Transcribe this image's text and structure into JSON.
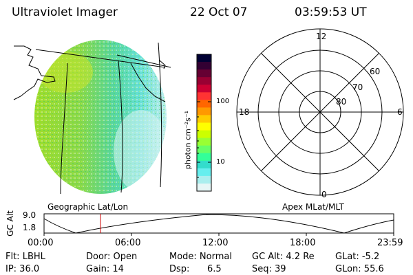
{
  "header": {
    "instrument": "Ultraviolet Imager",
    "date": "22 Oct 07",
    "time": "03:59:53 UT"
  },
  "colorbar": {
    "unit_label": "photon cm⁻²s⁻¹",
    "ticks": [
      "100",
      "10"
    ],
    "colors": [
      "#000033",
      "#330033",
      "#660033",
      "#990033",
      "#cc0033",
      "#ff3333",
      "#ff6600",
      "#ff9900",
      "#ffcc00",
      "#ffff00",
      "#ccff00",
      "#99ff33",
      "#66ff66",
      "#33ff99",
      "#33ddcc",
      "#66eeee",
      "#aaeeee",
      "#e6f6f6"
    ]
  },
  "map": {
    "projection_label": "Geographic Lat/Lon"
  },
  "polar": {
    "label": "Apex MLat/MLT",
    "mlt_labels": {
      "top": "12",
      "right": "6",
      "bottom": "0",
      "left": "18"
    },
    "lat_labels": [
      "60",
      "70",
      "80"
    ]
  },
  "altitude_plot": {
    "ylabel": "GC Alt",
    "yticks": [
      "9.0",
      "1.8"
    ],
    "xticks": [
      "00:00",
      "06:00",
      "12:00",
      "18:00",
      "23:59"
    ],
    "marker_color": "#cc0000"
  },
  "footer": {
    "filter": "Flt: LBHL",
    "door": "Door: Open",
    "mode": "Mode: Normal",
    "gc_alt": "GC Alt: 4.2 Re",
    "glat": "GLat:  -5.2",
    "ip": "IP: 36.0",
    "gain": "Gain: 14",
    "dsp_label": "Dsp:",
    "dsp_value": "6.5",
    "seq": "Seq: 39",
    "glon": "GLon:  55.6"
  }
}
